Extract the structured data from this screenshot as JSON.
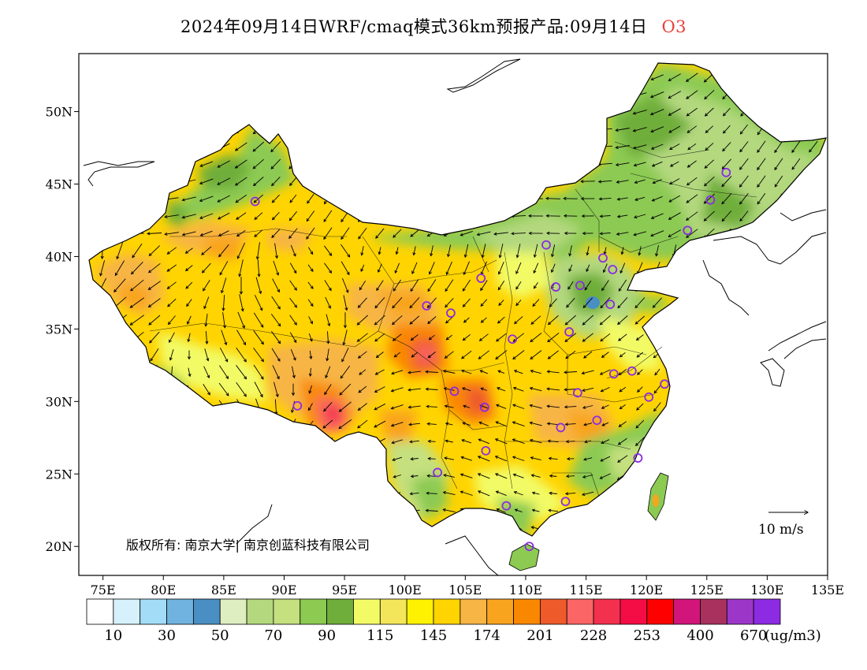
{
  "title": {
    "text": "2024年09月14日WRF/cmaq模式36km预报产品:09月14日",
    "pollutant": "O3"
  },
  "map": {
    "lon_range": [
      73,
      135
    ],
    "lat_range": [
      18,
      54
    ],
    "lon_ticks": [
      "75E",
      "80E",
      "85E",
      "90E",
      "95E",
      "100E",
      "105E",
      "110E",
      "115E",
      "120E",
      "125E",
      "130E",
      "135E"
    ],
    "lat_ticks": [
      "20N",
      "25N",
      "30N",
      "35N",
      "40N",
      "45N",
      "50N"
    ],
    "copyright": "版权所有: 南京大学| 南京创蓝科技有限公司",
    "wind_reference": "10 m/s",
    "city_markers": [
      {
        "lon": 87.6,
        "lat": 43.8
      },
      {
        "lon": 91.1,
        "lat": 29.7
      },
      {
        "lon": 101.8,
        "lat": 36.6
      },
      {
        "lon": 103.8,
        "lat": 36.1
      },
      {
        "lon": 106.3,
        "lat": 38.5
      },
      {
        "lon": 104.1,
        "lat": 30.7
      },
      {
        "lon": 106.6,
        "lat": 29.6
      },
      {
        "lon": 106.7,
        "lat": 26.6
      },
      {
        "lon": 102.7,
        "lat": 25.1
      },
      {
        "lon": 108.4,
        "lat": 22.8
      },
      {
        "lon": 110.3,
        "lat": 20.0
      },
      {
        "lon": 113.3,
        "lat": 23.1
      },
      {
        "lon": 108.9,
        "lat": 34.3
      },
      {
        "lon": 111.7,
        "lat": 40.8
      },
      {
        "lon": 112.5,
        "lat": 37.9
      },
      {
        "lon": 114.5,
        "lat": 38.0
      },
      {
        "lon": 116.4,
        "lat": 39.9
      },
      {
        "lon": 117.2,
        "lat": 39.1
      },
      {
        "lon": 117.0,
        "lat": 36.7
      },
      {
        "lon": 113.6,
        "lat": 34.8
      },
      {
        "lon": 114.3,
        "lat": 30.6
      },
      {
        "lon": 112.9,
        "lat": 28.2
      },
      {
        "lon": 115.9,
        "lat": 28.7
      },
      {
        "lon": 117.3,
        "lat": 31.9
      },
      {
        "lon": 118.8,
        "lat": 32.1
      },
      {
        "lon": 120.2,
        "lat": 30.3
      },
      {
        "lon": 121.5,
        "lat": 31.2
      },
      {
        "lon": 119.3,
        "lat": 26.1
      },
      {
        "lon": 123.4,
        "lat": 41.8
      },
      {
        "lon": 125.3,
        "lat": 43.9
      },
      {
        "lon": 126.6,
        "lat": 45.8
      }
    ]
  },
  "legend": {
    "colors": [
      "#ffffff",
      "#d6f1fb",
      "#a2dcf7",
      "#71b3e0",
      "#4a8fc3",
      "#dfeec0",
      "#b3d87e",
      "#c4e07f",
      "#8cca52",
      "#6fae3b",
      "#f2fb66",
      "#f3e65a",
      "#fff200",
      "#ffd400",
      "#f7b545",
      "#f9a41e",
      "#f98800",
      "#ef5a2a",
      "#fb6565",
      "#f3304d",
      "#f40d45",
      "#ff0000",
      "#d2157a",
      "#a8325d",
      "#9c36c9",
      "#8c2be2"
    ],
    "labels": [
      "10",
      "30",
      "50",
      "70",
      "90",
      "115",
      "145",
      "174",
      "201",
      "228",
      "253",
      "400",
      "670"
    ],
    "unit": "(ug/m3)"
  }
}
